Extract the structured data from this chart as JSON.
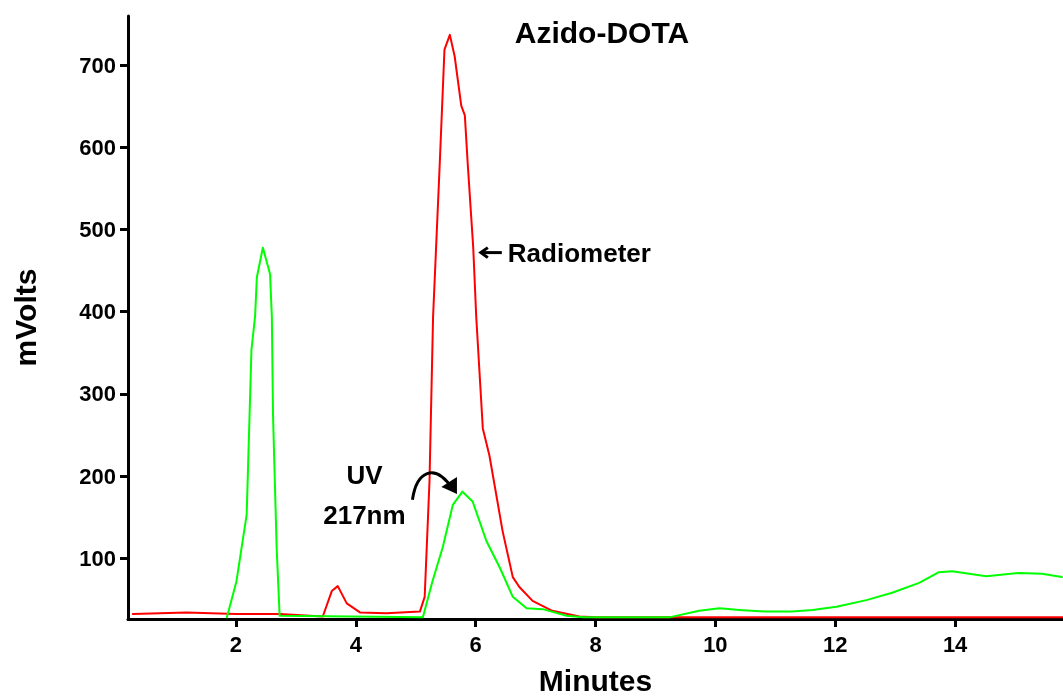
{
  "chart_data": {
    "type": "line",
    "title": "Azido-DOTA",
    "xlabel": "Minutes",
    "ylabel": "mVolts",
    "xlim": [
      0.2,
      15.8
    ],
    "ylim": [
      26,
      760
    ],
    "xticks": [
      2,
      4,
      6,
      8,
      10,
      12,
      14
    ],
    "yticks": [
      100,
      200,
      300,
      400,
      500,
      600,
      700
    ],
    "marker": "none",
    "line_style": "solid",
    "series": [
      {
        "color": "#ff0000",
        "x": [
          0.28,
          1.18,
          2.0,
          2.73,
          3.45,
          3.6,
          3.7,
          3.85,
          4.07,
          4.51,
          5.07,
          5.15,
          5.23,
          5.29,
          5.4,
          5.48,
          5.57,
          5.65,
          5.76,
          5.82,
          5.87,
          5.96,
          6.01,
          6.12,
          6.23,
          6.45,
          6.62,
          6.73,
          6.95,
          7.28,
          7.73,
          8.0,
          15.8
        ],
        "values": [
          32,
          34,
          32,
          32,
          29,
          60,
          66,
          45,
          34,
          33,
          35,
          53,
          193,
          394,
          578,
          719,
          737,
          711,
          651,
          639,
          578,
          478,
          394,
          258,
          225,
          133,
          77,
          65,
          48,
          36,
          29,
          28,
          28
        ]
      },
      {
        "color": "#00ff00",
        "x": [
          1.85,
          2.01,
          2.18,
          2.26,
          2.32,
          2.35,
          2.45,
          2.57,
          2.6,
          2.62,
          2.68,
          2.73,
          5.12,
          5.28,
          5.45,
          5.62,
          5.78,
          5.95,
          6.18,
          6.4,
          6.62,
          6.85,
          7.12,
          7.52,
          7.8,
          9.23,
          9.73,
          10.07,
          10.4,
          10.85,
          11.28,
          11.62,
          12.02,
          12.52,
          12.95,
          13.4,
          13.73,
          13.95,
          14.52,
          15.07,
          15.45,
          15.78
        ],
        "values": [
          28,
          72,
          153,
          354,
          394,
          442,
          478,
          446,
          394,
          273,
          113,
          30,
          28,
          72,
          113,
          165,
          181,
          169,
          121,
          89,
          53,
          39,
          38,
          30,
          28,
          28,
          36,
          39,
          37,
          35,
          35,
          37,
          41,
          49,
          58,
          70,
          83,
          84,
          78,
          82,
          81,
          77
        ]
      }
    ],
    "annotations": [
      {
        "text": "Radiometer",
        "x": 5.97,
        "y": 472
      },
      {
        "text": "UV\n217nm",
        "x": 5.68,
        "y": 181
      }
    ]
  }
}
